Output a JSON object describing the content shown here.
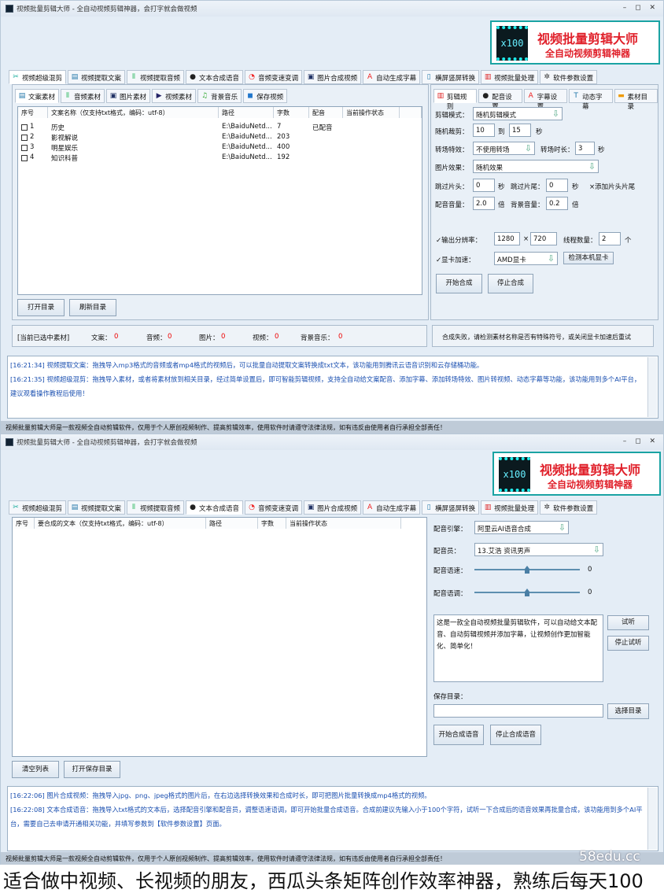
{
  "colors": {
    "accent": "#1a4fb0",
    "logo_border": "#1aa3a3",
    "logo_text": "#e0202a",
    "count_red": "#e00000",
    "footer_bg": "#bfcbd8"
  },
  "window_title": "视频批量剪辑大师 - 全自动视频剪辑神器，会打字就会做视频",
  "window_controls": "– ◻ ✕",
  "logo": {
    "badge": "x100",
    "line1": "视频批量剪辑大师",
    "line2": "全自动视频剪辑神器"
  },
  "main_tabs": [
    {
      "label": "视频超级混剪",
      "icon": "scissors-icon"
    },
    {
      "label": "视频提取文案",
      "icon": "document-icon"
    },
    {
      "label": "视频提取音频",
      "icon": "audio-wave-icon"
    },
    {
      "label": "文本合成语音",
      "icon": "microphone-icon"
    },
    {
      "label": "音频变速变调",
      "icon": "gauge-icon"
    },
    {
      "label": "图片合成视频",
      "icon": "image-icon"
    },
    {
      "label": "自动生成字幕",
      "icon": "subtitle-icon"
    },
    {
      "label": "横屏竖屏转换",
      "icon": "rotate-icon"
    },
    {
      "label": "视频批量处理",
      "icon": "film-icon"
    },
    {
      "label": "软件参数设置",
      "icon": "gear-icon"
    }
  ],
  "w1": {
    "active_tab": 0,
    "material_tabs": [
      "文案素材",
      "音频素材",
      "图片素材",
      "视频素材",
      "背景音乐",
      "保存视频"
    ],
    "columns": [
      "序号",
      "文案名称（仅支持txt格式，编码：utf-8）",
      "路径",
      "字数",
      "配音",
      "当前操作状态"
    ],
    "rows": [
      {
        "no": "1",
        "name": "历史",
        "path": "E:\\BaiduNetd...",
        "count": "7",
        "dub": "已配音",
        "status": ""
      },
      {
        "no": "2",
        "name": "影视解说",
        "path": "E:\\BaiduNetd...",
        "count": "203",
        "dub": "",
        "status": ""
      },
      {
        "no": "3",
        "name": "明星娱乐",
        "path": "E:\\BaiduNetd...",
        "count": "400",
        "dub": "",
        "status": ""
      },
      {
        "no": "4",
        "name": "知识科普",
        "path": "E:\\BaiduNetd...",
        "count": "192",
        "dub": "",
        "status": ""
      }
    ],
    "open_dir": "打开目录",
    "refresh_dir": "刷新目录",
    "selected": {
      "label": "[当前已选中素材]",
      "text_label": "文案：",
      "text": "0",
      "audio_label": "音频：",
      "audio": "0",
      "image_label": "图片：",
      "image": "0",
      "video_label": "视频：",
      "video": "0",
      "bgm_label": "背景音乐：",
      "bgm": "0"
    },
    "settings_tabs": [
      "剪辑规则",
      "配音设置",
      "字幕设置",
      "动态字幕",
      "素材目录"
    ],
    "settings": {
      "mode_label": "剪辑模式：",
      "mode": "随机剪辑模式",
      "cut_label": "随机裁剪：",
      "cut_from": "10",
      "to": "到",
      "cut_to": "15",
      "sec": "秒",
      "trans_label": "转场特效：",
      "trans": "不使用转场",
      "trans_dur_label": "转场时长：",
      "trans_dur": "3",
      "img_label": "图片效果：",
      "img": "随机效果",
      "skip_head_label": "跳过片头：",
      "skip_head": "0",
      "skip_tail_label": "跳过片尾：",
      "skip_tail": "0",
      "add_head_tail": "×添加片头片尾",
      "dub_vol_label": "配音音量：",
      "dub_vol": "2.0",
      "times": "倍",
      "bg_vol_label": "背景音量：",
      "bg_vol": "0.2",
      "res_label": "✓输出分辨率：",
      "res_w": "1280",
      "x": "×",
      "res_h": "720",
      "threads_label": "线程数量：",
      "threads": "2",
      "unit": "个",
      "gpu_label": "✓显卡加速：",
      "gpu": "AMD显卡",
      "detect_gpu": "检测本机显卡",
      "start": "开始合成",
      "stop": "停止合成"
    },
    "hint": "合成失败，请检测素材名称是否有特殊符号，或关闭显卡加速后重试",
    "log": [
      "[16:21:34] 视频提取文案：拖拽导入mp3格式的音频或者mp4格式的视频后，可以批量自动提取文案转换成txt文本，该功能用到腾讯云语音识别和云存储桶功能。",
      "[16:21:35] 视频超级混剪：拖拽导入素材，或者将素材放到相关目录，经过简单设置后，即可智能剪辑视频，支持全自动给文案配音、添加字幕、添加转场特效、图片转视频、动态字幕等功能，该功能用到多个AI平台，建议观看操作教程后使用！"
    ]
  },
  "footer": "视频批量剪辑大师是一款视频全自动剪辑软件，仅用于个人原创视频制作、提高剪辑效率，使用软件时请遵守法律法规，如有违反由使用者自行承担全部责任！",
  "w2": {
    "active_tab": 3,
    "columns": [
      "序号",
      "要合成的文本（仅支持txt格式，编码：utf-8）",
      "路径",
      "字数",
      "当前操作状态"
    ],
    "clear_list": "清空列表",
    "open_save_dir": "打开保存目录",
    "engine_label": "配音引擎：",
    "engine": "阿里云AI语音合成",
    "voice_label": "配音员：",
    "voice": "13.艾浩 资讯男声",
    "speed_label": "配音语速：",
    "speed": "0",
    "pitch_label": "配音语调：",
    "pitch": "0",
    "sample_text": "这是一款全自动视频批量剪辑软件，可以自动给文本配音、自动剪辑视频并添加字幕，让视频创作更加智能化、简单化！",
    "listen": "试听",
    "stop_listen": "停止试听",
    "save_dir_label": "保存目录：",
    "save_dir": "",
    "choose_dir": "选择目录",
    "start": "开始合成语音",
    "stop": "停止合成语音",
    "log": [
      "[16:22:06] 图片合成视频：拖拽导入jpg、png、jpeg格式的图片后，在右边选择转换效果和合成时长，即可把图片批量转换成mp4格式的视频。",
      "[16:22:08] 文本合成语音：拖拽导入txt格式的文本后，选择配音引擎和配音员，调整语速语调，即可开始批量合成语音。合成前建议先输入小于100个字符，试听一下合成后的语音效果再批量合成，该功能用到多个AI平台，需要自己去申请开通相关功能，并填写参数到【软件参数设置】页面。"
    ]
  },
  "watermark": "58edu.cc",
  "caption": "适合做中视频、长视频的朋友，西瓜头条矩阵创作效率神器，熟练后每天100"
}
